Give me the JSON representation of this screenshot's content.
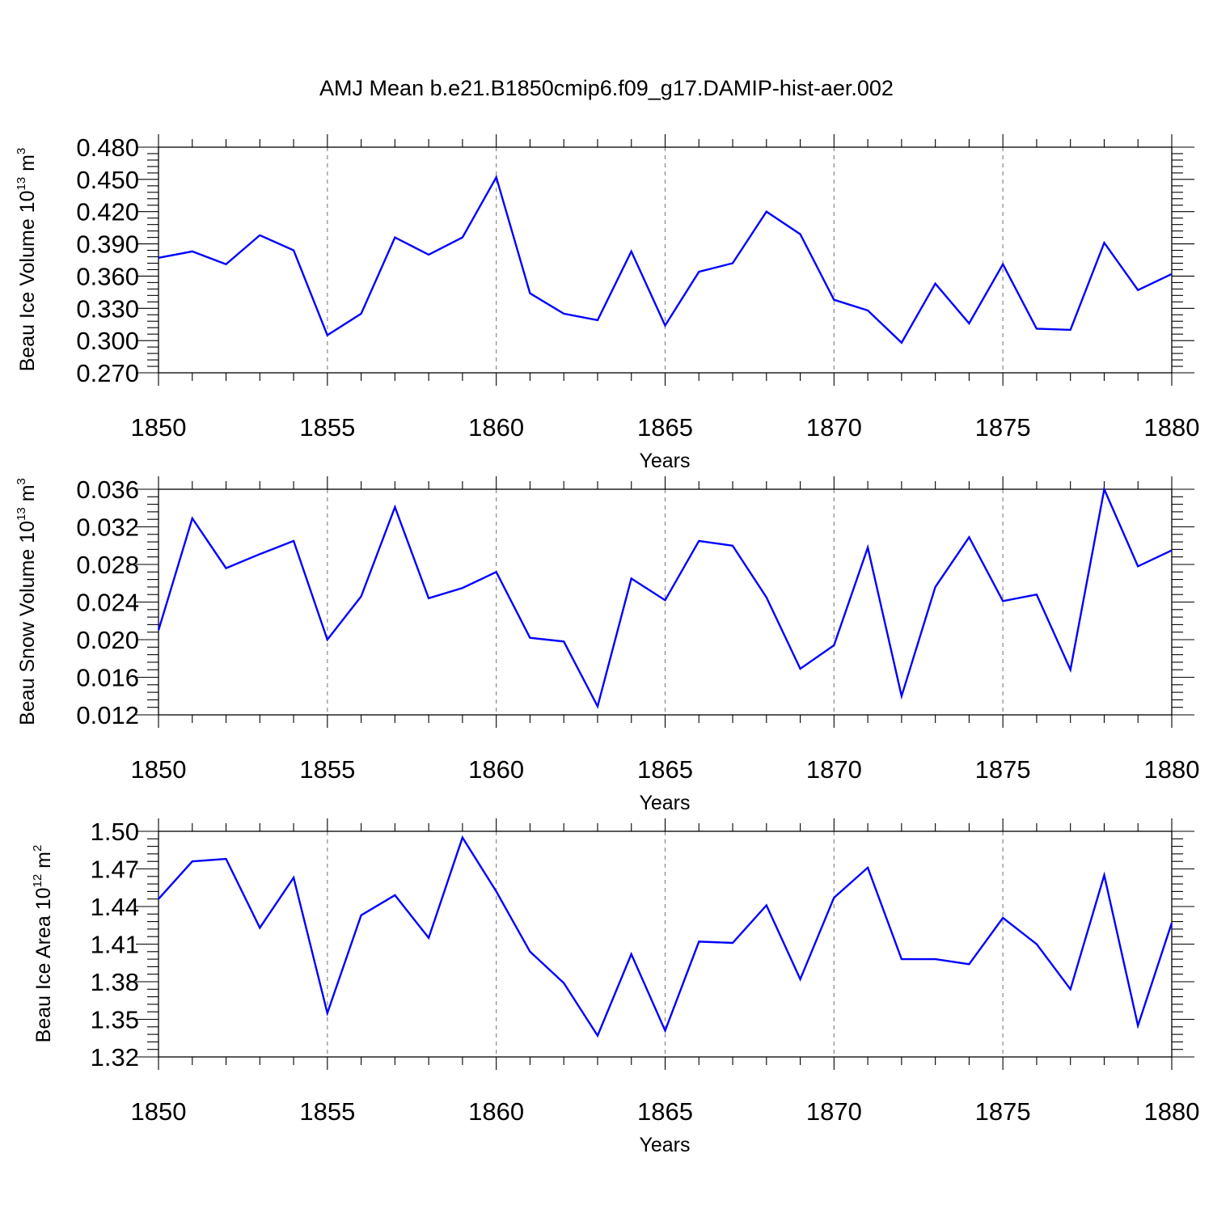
{
  "title": "AMJ Mean b.e21.B1850cmip6.f09_g17.DAMIP-hist-aer.002",
  "chart_data": [
    {
      "type": "line",
      "ylabel_main": "Beau Ice Volume 10",
      "ylabel_exp": "13",
      "ylabel_unit": " m",
      "ylabel_unit_exp": "3",
      "xlabel": "Years",
      "xlim": [
        1850,
        1880
      ],
      "ylim": [
        0.27,
        0.48
      ],
      "xticks": [
        "1850",
        "1855",
        "1860",
        "1865",
        "1870",
        "1875",
        "1880"
      ],
      "yticks": [
        "0.270",
        "0.300",
        "0.330",
        "0.360",
        "0.390",
        "0.420",
        "0.450",
        "0.480"
      ],
      "x": [
        1850,
        1851,
        1852,
        1853,
        1854,
        1855,
        1856,
        1857,
        1858,
        1859,
        1860,
        1861,
        1862,
        1863,
        1864,
        1865,
        1866,
        1867,
        1868,
        1869,
        1870,
        1871,
        1872,
        1873,
        1874,
        1875,
        1876,
        1877,
        1878,
        1879,
        1880
      ],
      "values": [
        0.377,
        0.383,
        0.371,
        0.398,
        0.384,
        0.305,
        0.325,
        0.396,
        0.38,
        0.396,
        0.452,
        0.344,
        0.325,
        0.319,
        0.383,
        0.314,
        0.364,
        0.372,
        0.42,
        0.399,
        0.338,
        0.328,
        0.298,
        0.353,
        0.316,
        0.371,
        0.311,
        0.31,
        0.391,
        0.347,
        0.362
      ]
    },
    {
      "type": "line",
      "ylabel_main": "Beau Snow Volume 10",
      "ylabel_exp": "13",
      "ylabel_unit": " m",
      "ylabel_unit_exp": "3",
      "xlabel": "Years",
      "xlim": [
        1850,
        1880
      ],
      "ylim": [
        0.012,
        0.036
      ],
      "xticks": [
        "1850",
        "1855",
        "1860",
        "1865",
        "1870",
        "1875",
        "1880"
      ],
      "yticks": [
        "0.012",
        "0.016",
        "0.020",
        "0.024",
        "0.028",
        "0.032",
        "0.036"
      ],
      "x": [
        1850,
        1851,
        1852,
        1853,
        1854,
        1855,
        1856,
        1857,
        1858,
        1859,
        1860,
        1861,
        1862,
        1863,
        1864,
        1865,
        1866,
        1867,
        1868,
        1869,
        1870,
        1871,
        1872,
        1873,
        1874,
        1875,
        1876,
        1877,
        1878,
        1879,
        1880
      ],
      "values": [
        0.021,
        0.0329,
        0.0276,
        0.0291,
        0.0305,
        0.02,
        0.0246,
        0.0341,
        0.0244,
        0.0255,
        0.0272,
        0.0202,
        0.0198,
        0.0129,
        0.0265,
        0.0242,
        0.0305,
        0.03,
        0.0245,
        0.0169,
        0.0194,
        0.0298,
        0.014,
        0.0256,
        0.0309,
        0.0241,
        0.0248,
        0.0168,
        0.036,
        0.0278,
        0.0295
      ]
    },
    {
      "type": "line",
      "ylabel_main": "Beau Ice Area 10",
      "ylabel_exp": "12",
      "ylabel_unit": " m",
      "ylabel_unit_exp": "2",
      "xlabel": "Years",
      "xlim": [
        1850,
        1880
      ],
      "ylim": [
        1.32,
        1.5
      ],
      "xticks": [
        "1850",
        "1855",
        "1860",
        "1865",
        "1870",
        "1875",
        "1880"
      ],
      "yticks": [
        "1.32",
        "1.35",
        "1.38",
        "1.41",
        "1.44",
        "1.47",
        "1.50"
      ],
      "x": [
        1850,
        1851,
        1852,
        1853,
        1854,
        1855,
        1856,
        1857,
        1858,
        1859,
        1860,
        1861,
        1862,
        1863,
        1864,
        1865,
        1866,
        1867,
        1868,
        1869,
        1870,
        1871,
        1872,
        1873,
        1874,
        1875,
        1876,
        1877,
        1878,
        1879,
        1880
      ],
      "values": [
        1.446,
        1.476,
        1.478,
        1.423,
        1.463,
        1.355,
        1.433,
        1.449,
        1.415,
        1.495,
        1.452,
        1.404,
        1.379,
        1.337,
        1.402,
        1.341,
        1.412,
        1.411,
        1.441,
        1.382,
        1.447,
        1.471,
        1.398,
        1.398,
        1.394,
        1.431,
        1.41,
        1.374,
        1.465,
        1.345,
        1.427
      ]
    }
  ]
}
